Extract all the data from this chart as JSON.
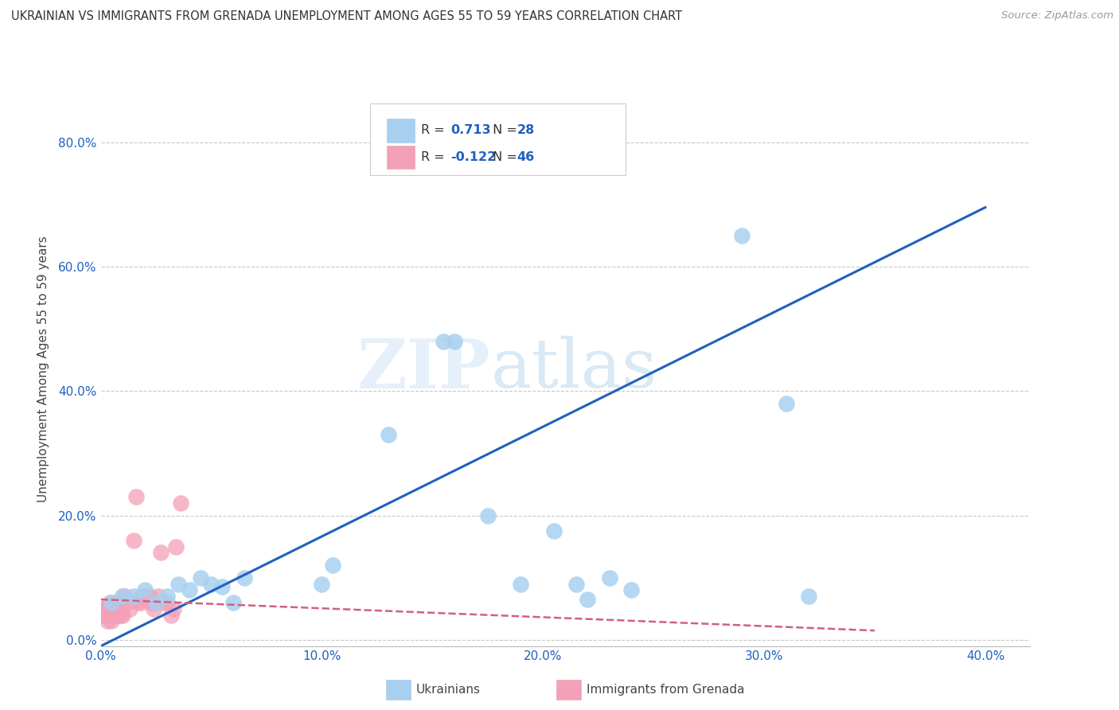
{
  "title": "UKRAINIAN VS IMMIGRANTS FROM GRENADA UNEMPLOYMENT AMONG AGES 55 TO 59 YEARS CORRELATION CHART",
  "source": "Source: ZipAtlas.com",
  "ylabel": "Unemployment Among Ages 55 to 59 years",
  "xlim": [
    0.0,
    0.42
  ],
  "ylim": [
    -0.01,
    0.88
  ],
  "xticks": [
    0.0,
    0.1,
    0.2,
    0.3,
    0.4
  ],
  "yticks": [
    0.0,
    0.2,
    0.4,
    0.6,
    0.8
  ],
  "xtick_labels": [
    "0.0%",
    "10.0%",
    "20.0%",
    "30.0%",
    "40.0%"
  ],
  "ytick_labels": [
    "0.0%",
    "20.0%",
    "40.0%",
    "60.0%",
    "80.0%"
  ],
  "watermark_zip": "ZIP",
  "watermark_atlas": "atlas",
  "blue_color": "#a8d0f0",
  "pink_color": "#f4a0b8",
  "blue_line_color": "#2060c0",
  "pink_line_color": "#d06080",
  "R_blue": "0.713",
  "N_blue": "28",
  "R_pink": "-0.122",
  "N_pink": "46",
  "blue_scatter_x": [
    0.005,
    0.01,
    0.015,
    0.02,
    0.025,
    0.03,
    0.035,
    0.04,
    0.045,
    0.05,
    0.055,
    0.06,
    0.065,
    0.1,
    0.105,
    0.13,
    0.155,
    0.16,
    0.175,
    0.19,
    0.205,
    0.215,
    0.22,
    0.23,
    0.24,
    0.29,
    0.31,
    0.32
  ],
  "blue_scatter_y": [
    0.06,
    0.07,
    0.07,
    0.08,
    0.06,
    0.07,
    0.09,
    0.08,
    0.1,
    0.09,
    0.085,
    0.06,
    0.1,
    0.09,
    0.12,
    0.33,
    0.48,
    0.48,
    0.2,
    0.09,
    0.175,
    0.09,
    0.065,
    0.1,
    0.08,
    0.65,
    0.38,
    0.07
  ],
  "pink_scatter_x": [
    0.0,
    0.001,
    0.001,
    0.002,
    0.002,
    0.003,
    0.003,
    0.003,
    0.004,
    0.004,
    0.005,
    0.005,
    0.006,
    0.006,
    0.006,
    0.007,
    0.007,
    0.007,
    0.008,
    0.008,
    0.009,
    0.009,
    0.01,
    0.01,
    0.011,
    0.012,
    0.013,
    0.015,
    0.016,
    0.017,
    0.018,
    0.018,
    0.02,
    0.021,
    0.022,
    0.023,
    0.024,
    0.025,
    0.026,
    0.027,
    0.028,
    0.03,
    0.032,
    0.033,
    0.034,
    0.036
  ],
  "pink_scatter_y": [
    0.04,
    0.04,
    0.05,
    0.04,
    0.05,
    0.03,
    0.04,
    0.05,
    0.04,
    0.06,
    0.03,
    0.04,
    0.04,
    0.05,
    0.06,
    0.04,
    0.05,
    0.06,
    0.04,
    0.06,
    0.04,
    0.05,
    0.04,
    0.07,
    0.07,
    0.06,
    0.05,
    0.16,
    0.23,
    0.06,
    0.06,
    0.07,
    0.07,
    0.07,
    0.07,
    0.06,
    0.05,
    0.06,
    0.07,
    0.14,
    0.06,
    0.06,
    0.04,
    0.05,
    0.15,
    0.22
  ],
  "blue_line_x": [
    0.0,
    0.4
  ],
  "blue_line_y": [
    -0.01,
    0.695
  ],
  "pink_line_x": [
    0.0,
    0.35
  ],
  "pink_line_y": [
    0.065,
    0.015
  ]
}
